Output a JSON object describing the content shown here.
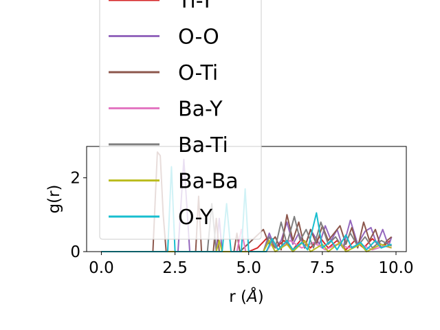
{
  "chart_data": {
    "type": "line",
    "xlabel_text": "r (",
    "xlabel_unit": "Å",
    "xlabel_close": ")",
    "ylabel": "g(r)",
    "xlim": [
      -0.5,
      10.35
    ],
    "ylim": [
      0,
      2.85
    ],
    "xticks": [
      0.0,
      2.5,
      5.0,
      7.5,
      10.0
    ],
    "xtick_labels": [
      "0.0",
      "2.5",
      "5.0",
      "7.5",
      "10.0"
    ],
    "yticks": [
      0,
      2
    ],
    "ytick_labels": [
      "0",
      "2"
    ],
    "legend_position": "upper-center, overlapping plot",
    "series": [
      {
        "name": "Ti-Y",
        "color": "#d62728",
        "points": [
          [
            0,
            0
          ],
          [
            5.0,
            0
          ],
          [
            5.3,
            0.1
          ],
          [
            5.6,
            0.35
          ],
          [
            5.9,
            0.1
          ],
          [
            6.2,
            0.3
          ],
          [
            6.5,
            0.05
          ],
          [
            6.8,
            0.35
          ],
          [
            7.1,
            0.1
          ],
          [
            7.4,
            0.4
          ],
          [
            7.7,
            0.1
          ],
          [
            8.0,
            0.3
          ],
          [
            8.3,
            0.05
          ],
          [
            8.6,
            0.3
          ],
          [
            8.9,
            0.1
          ],
          [
            9.2,
            0.35
          ],
          [
            9.5,
            0.1
          ],
          [
            9.8,
            0.3
          ]
        ]
      },
      {
        "name": "O-O",
        "color": "#9467bd",
        "points": [
          [
            0,
            0
          ],
          [
            2.6,
            0
          ],
          [
            2.8,
            2.5
          ],
          [
            3.0,
            0
          ],
          [
            3.9,
            0
          ],
          [
            4.0,
            0.9
          ],
          [
            4.1,
            0
          ],
          [
            5.5,
            0
          ],
          [
            5.7,
            0.5
          ],
          [
            5.9,
            0.1
          ],
          [
            6.1,
            0.3
          ],
          [
            6.3,
            0.8
          ],
          [
            6.5,
            0.2
          ],
          [
            6.7,
            0.5
          ],
          [
            6.9,
            0.1
          ],
          [
            7.1,
            0.6
          ],
          [
            7.4,
            0.2
          ],
          [
            7.6,
            0.7
          ],
          [
            7.8,
            0.3
          ],
          [
            8.0,
            0.6
          ],
          [
            8.2,
            0.1
          ],
          [
            8.45,
            0.85
          ],
          [
            8.7,
            0.2
          ],
          [
            8.95,
            0.55
          ],
          [
            9.15,
            0.65
          ],
          [
            9.35,
            0.2
          ],
          [
            9.55,
            0.6
          ],
          [
            9.75,
            0.15
          ],
          [
            9.85,
            0.4
          ]
        ]
      },
      {
        "name": "O-Ti",
        "color": "#8c564b",
        "points": [
          [
            0,
            0
          ],
          [
            1.75,
            0
          ],
          [
            1.9,
            2.7
          ],
          [
            2.0,
            2.6
          ],
          [
            2.1,
            1.0
          ],
          [
            2.2,
            0
          ],
          [
            3.2,
            0
          ],
          [
            3.3,
            1.5
          ],
          [
            3.4,
            0
          ],
          [
            3.8,
            0
          ],
          [
            3.9,
            0.9
          ],
          [
            4.0,
            0
          ],
          [
            4.5,
            0
          ],
          [
            4.6,
            0.5
          ],
          [
            4.7,
            0
          ],
          [
            5.5,
            0.6
          ],
          [
            5.7,
            0.2
          ],
          [
            5.9,
            0.4
          ],
          [
            6.1,
            0.05
          ],
          [
            6.3,
            1.0
          ],
          [
            6.5,
            0.3
          ],
          [
            6.7,
            0.8
          ],
          [
            6.9,
            0.1
          ],
          [
            7.1,
            0.6
          ],
          [
            7.3,
            0.2
          ],
          [
            7.5,
            0.7
          ],
          [
            7.7,
            0.3
          ],
          [
            7.9,
            0.5
          ],
          [
            8.1,
            0.7
          ],
          [
            8.3,
            0.2
          ],
          [
            8.5,
            0.65
          ],
          [
            8.7,
            0.1
          ],
          [
            8.9,
            0.8
          ],
          [
            9.1,
            0.3
          ],
          [
            9.3,
            0.6
          ],
          [
            9.5,
            0.1
          ],
          [
            9.7,
            0.3
          ],
          [
            9.85,
            0.4
          ]
        ]
      },
      {
        "name": "Ba-Y",
        "color": "#e377c2",
        "points": [
          [
            0,
            0
          ],
          [
            4.6,
            0
          ],
          [
            4.75,
            0.6
          ],
          [
            4.9,
            0
          ],
          [
            5.6,
            0
          ],
          [
            5.8,
            0.25
          ],
          [
            6.0,
            0.05
          ],
          [
            6.4,
            0.3
          ],
          [
            6.8,
            0.1
          ],
          [
            7.2,
            0.25
          ],
          [
            7.6,
            0.05
          ],
          [
            8.0,
            0.2
          ],
          [
            8.4,
            0.1
          ],
          [
            8.8,
            0.2
          ],
          [
            9.2,
            0.05
          ],
          [
            9.6,
            0.15
          ],
          [
            9.85,
            0.1
          ]
        ]
      },
      {
        "name": "Ba-Ti",
        "color": "#7f7f7f",
        "points": [
          [
            0,
            0
          ],
          [
            3.6,
            0
          ],
          [
            3.75,
            1.3
          ],
          [
            3.9,
            0
          ],
          [
            5.5,
            0
          ],
          [
            5.7,
            0.4
          ],
          [
            5.9,
            0.1
          ],
          [
            6.1,
            0.8
          ],
          [
            6.3,
            0.2
          ],
          [
            6.55,
            0.95
          ],
          [
            6.75,
            0.3
          ],
          [
            6.95,
            0.6
          ],
          [
            7.2,
            0.1
          ],
          [
            7.45,
            0.8
          ],
          [
            7.7,
            0.2
          ],
          [
            7.95,
            0.4
          ],
          [
            8.2,
            0.1
          ],
          [
            8.45,
            0.5
          ],
          [
            8.7,
            0.15
          ],
          [
            8.95,
            0.4
          ],
          [
            9.2,
            0.1
          ],
          [
            9.5,
            0.3
          ],
          [
            9.85,
            0.15
          ]
        ]
      },
      {
        "name": "Ba-Ba",
        "color": "#bcbd22",
        "points": [
          [
            0,
            0
          ],
          [
            3.9,
            0
          ],
          [
            4.0,
            0.3
          ],
          [
            4.1,
            0
          ],
          [
            5.5,
            0
          ],
          [
            5.7,
            0.3
          ],
          [
            5.9,
            0
          ],
          [
            6.3,
            0.2
          ],
          [
            6.5,
            0
          ],
          [
            6.9,
            0.3
          ],
          [
            7.1,
            0
          ],
          [
            7.5,
            0.2
          ],
          [
            7.7,
            0
          ],
          [
            8.1,
            0.25
          ],
          [
            8.3,
            0
          ],
          [
            8.8,
            0.2
          ],
          [
            9.0,
            0
          ],
          [
            9.5,
            0.2
          ],
          [
            9.85,
            0.1
          ]
        ]
      },
      {
        "name": "O-Y",
        "color": "#17becf",
        "points": [
          [
            0,
            0
          ],
          [
            2.25,
            0
          ],
          [
            2.38,
            2.3
          ],
          [
            2.5,
            0
          ],
          [
            4.1,
            0
          ],
          [
            4.25,
            1.3
          ],
          [
            4.4,
            0
          ],
          [
            4.75,
            0
          ],
          [
            4.88,
            1.7
          ],
          [
            5.0,
            0
          ],
          [
            5.6,
            0
          ],
          [
            5.8,
            0.35
          ],
          [
            6.0,
            0.05
          ],
          [
            6.3,
            0.3
          ],
          [
            6.5,
            0.05
          ],
          [
            6.8,
            0.25
          ],
          [
            7.0,
            0.05
          ],
          [
            7.3,
            1.05
          ],
          [
            7.5,
            0.1
          ],
          [
            7.8,
            0.3
          ],
          [
            8.0,
            0.05
          ],
          [
            8.3,
            0.45
          ],
          [
            8.5,
            0.1
          ],
          [
            8.8,
            0.25
          ],
          [
            9.0,
            0.05
          ],
          [
            9.3,
            0.3
          ],
          [
            9.5,
            0.1
          ],
          [
            9.85,
            0.2
          ]
        ]
      }
    ]
  }
}
